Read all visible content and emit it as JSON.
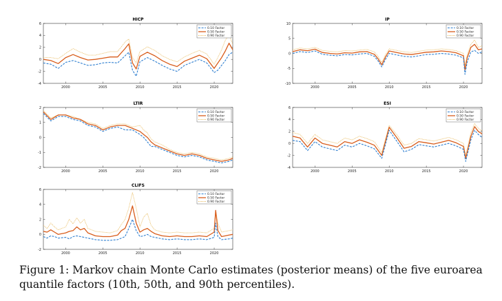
{
  "caption": "Figure 1: Markov chain Monte Carlo estimates (posterior means) of the five euroarea quantile factors (10th, 50th, and 90th percentiles).",
  "colors": {
    "q10": "#2f7fd0",
    "q50": "#d85c1a",
    "q90": "#e8b95a"
  },
  "chart_data": [
    {
      "type": "line",
      "title": "HICP",
      "xlim": [
        1997,
        2022.5
      ],
      "ylim": [
        -4,
        6
      ],
      "xticks": [
        2000,
        2005,
        2010,
        2015,
        2020
      ],
      "yticks": [
        -4,
        -2,
        0,
        2,
        4,
        6
      ],
      "legend": [
        "0.10 Factor",
        "0.50 Factor",
        "0.90 Factor"
      ],
      "legend_loc": "top-right",
      "x": [
        1997,
        1998,
        1999,
        2000,
        2001,
        2002,
        2003,
        2004,
        2005,
        2006,
        2007,
        2008,
        2008.5,
        2009,
        2009.5,
        2010,
        2011,
        2012,
        2013,
        2014,
        2015,
        2016,
        2017,
        2018,
        2019,
        2020,
        2020.5,
        2021,
        2021.5,
        2022,
        2022.5
      ],
      "series": [
        {
          "name": "0.10 Factor",
          "values": [
            -0.6,
            -0.8,
            -1.5,
            -0.5,
            -0.2,
            -0.6,
            -1.0,
            -0.9,
            -0.6,
            -0.5,
            -0.6,
            0.6,
            1.2,
            -1.8,
            -2.8,
            -0.4,
            0.3,
            -0.3,
            -1.0,
            -1.6,
            -2.0,
            -1.0,
            -0.5,
            0.0,
            -0.6,
            -2.2,
            -1.8,
            -1.0,
            -0.2,
            0.8,
            1.2
          ]
        },
        {
          "name": "0.50 Factor",
          "values": [
            0.0,
            -0.2,
            -0.7,
            0.3,
            0.8,
            0.3,
            -0.1,
            0.0,
            0.2,
            0.4,
            0.4,
            1.8,
            2.6,
            -0.6,
            -1.6,
            0.5,
            1.2,
            0.6,
            -0.2,
            -0.8,
            -1.2,
            -0.3,
            0.2,
            0.7,
            0.1,
            -1.5,
            -0.6,
            0.3,
            1.4,
            2.7,
            1.6
          ]
        },
        {
          "name": "0.90 Factor",
          "values": [
            0.3,
            0.3,
            0.1,
            1.0,
            1.8,
            1.2,
            0.7,
            0.7,
            1.0,
            1.3,
            1.3,
            2.9,
            3.4,
            0.3,
            -0.6,
            1.3,
            2.1,
            1.5,
            0.6,
            0.0,
            -0.4,
            0.4,
            1.0,
            1.5,
            0.9,
            -0.8,
            0.3,
            1.6,
            3.2,
            4.2,
            2.5
          ]
        }
      ]
    },
    {
      "type": "line",
      "title": "IP",
      "xlim": [
        1997,
        2022.5
      ],
      "ylim": [
        -10,
        10
      ],
      "xticks": [
        2000,
        2005,
        2010,
        2015,
        2020
      ],
      "yticks": [
        -10,
        -5,
        0,
        5,
        10
      ],
      "legend": [
        "0.10 Factor",
        "0.50 Factor",
        "0.90 Factor"
      ],
      "legend_loc": "top-right",
      "x": [
        1997,
        1998,
        1999,
        2000,
        2001,
        2002,
        2003,
        2004,
        2005,
        2006,
        2007,
        2008,
        2008.5,
        2009,
        2009.5,
        2010,
        2011,
        2012,
        2013,
        2014,
        2015,
        2016,
        2017,
        2018,
        2019,
        2020,
        2020.2,
        2020.5,
        2021,
        2021.5,
        2022,
        2022.5
      ],
      "series": [
        {
          "name": "0.10 Factor",
          "values": [
            0.0,
            0.6,
            0.3,
            0.8,
            -0.3,
            -0.6,
            -0.8,
            -0.4,
            -0.5,
            -0.2,
            0.0,
            -1.0,
            -2.5,
            -4.5,
            -2.0,
            0.0,
            -0.5,
            -1.0,
            -1.2,
            -0.8,
            -0.4,
            -0.3,
            0.0,
            -0.2,
            -0.6,
            -1.5,
            -7.0,
            -3.0,
            0.5,
            1.0,
            0.0,
            0.5
          ]
        },
        {
          "name": "0.50 Factor",
          "values": [
            0.6,
            1.2,
            0.9,
            1.4,
            0.3,
            0.0,
            -0.2,
            0.2,
            0.1,
            0.5,
            0.6,
            -0.3,
            -1.8,
            -3.8,
            -1.2,
            0.8,
            0.3,
            -0.2,
            -0.4,
            0.0,
            0.4,
            0.5,
            0.8,
            0.6,
            0.2,
            -0.8,
            -5.5,
            -1.5,
            2.0,
            3.0,
            1.2,
            1.5
          ]
        },
        {
          "name": "0.90 Factor",
          "values": [
            1.2,
            1.8,
            1.5,
            2.0,
            1.0,
            0.7,
            0.5,
            0.9,
            0.8,
            1.1,
            1.3,
            0.5,
            -1.0,
            -3.0,
            -0.4,
            1.5,
            1.0,
            0.5,
            0.3,
            0.7,
            1.1,
            1.2,
            1.5,
            1.3,
            0.9,
            0.0,
            -4.0,
            -0.5,
            3.0,
            4.5,
            2.0,
            2.5
          ]
        }
      ]
    },
    {
      "type": "line",
      "title": "LTIR",
      "xlim": [
        1997,
        2022.5
      ],
      "ylim": [
        -2,
        2
      ],
      "xticks": [
        2000,
        2005,
        2010,
        2015,
        2020
      ],
      "yticks": [
        -2,
        -1,
        0,
        1,
        2
      ],
      "legend": [
        "0.10 Factor",
        "0.50 Factor",
        "0.90 Factor"
      ],
      "legend_loc": "top-right",
      "x": [
        1997,
        1998,
        1999,
        2000,
        2001,
        2002,
        2003,
        2004,
        2005,
        2006,
        2007,
        2008,
        2009,
        2010,
        2010.5,
        2011,
        2011.5,
        2012,
        2013,
        2014,
        2015,
        2016,
        2017,
        2018,
        2019,
        2020,
        2021,
        2022,
        2022.5
      ],
      "series": [
        {
          "name": "0.10 Factor",
          "values": [
            1.6,
            1.1,
            1.4,
            1.4,
            1.2,
            1.1,
            0.8,
            0.7,
            0.4,
            0.6,
            0.7,
            0.5,
            0.5,
            0.2,
            0.0,
            -0.3,
            -0.6,
            -0.6,
            -0.8,
            -1.0,
            -1.2,
            -1.3,
            -1.2,
            -1.3,
            -1.5,
            -1.6,
            -1.7,
            -1.6,
            -1.5
          ]
        },
        {
          "name": "0.50 Factor",
          "values": [
            1.7,
            1.2,
            1.5,
            1.5,
            1.3,
            1.2,
            0.9,
            0.8,
            0.5,
            0.7,
            0.8,
            0.8,
            0.6,
            0.4,
            0.2,
            0.0,
            -0.3,
            -0.5,
            -0.7,
            -0.9,
            -1.1,
            -1.2,
            -1.1,
            -1.2,
            -1.4,
            -1.5,
            -1.6,
            -1.5,
            -1.4
          ]
        },
        {
          "name": "0.90 Factor",
          "values": [
            1.8,
            1.3,
            1.5,
            1.5,
            1.4,
            1.2,
            1.0,
            0.9,
            0.6,
            0.8,
            0.9,
            0.9,
            0.7,
            0.8,
            0.5,
            0.3,
            -0.1,
            -0.3,
            -0.5,
            -0.8,
            -1.0,
            -1.1,
            -1.0,
            -1.1,
            -1.3,
            -1.4,
            -1.5,
            -1.4,
            -1.3
          ]
        }
      ]
    },
    {
      "type": "line",
      "title": "ESI",
      "xlim": [
        1997,
        2022.5
      ],
      "ylim": [
        -4,
        6
      ],
      "xticks": [
        2000,
        2005,
        2010,
        2015,
        2020
      ],
      "yticks": [
        -4,
        -2,
        0,
        2,
        4,
        6
      ],
      "legend": [
        "0.10 Factor",
        "0.50 Factor",
        "0.90 Factor"
      ],
      "legend_loc": "top-right",
      "x": [
        1997,
        1998,
        1999,
        2000,
        2001,
        2002,
        2003,
        2004,
        2005,
        2006,
        2007,
        2008,
        2009,
        2010,
        2011,
        2012,
        2013,
        2014,
        2015,
        2016,
        2017,
        2018,
        2019,
        2020,
        2020.3,
        2021,
        2021.5,
        2022,
        2022.5
      ],
      "series": [
        {
          "name": "0.10 Factor",
          "values": [
            0.5,
            0.3,
            -1.2,
            0.3,
            -0.6,
            -0.9,
            -1.2,
            -0.3,
            -0.6,
            0.0,
            -0.4,
            -0.9,
            -2.5,
            2.2,
            0.4,
            -1.4,
            -1.0,
            -0.2,
            -0.4,
            -0.6,
            -0.3,
            0.0,
            -0.4,
            -1.0,
            -3.0,
            0.6,
            2.2,
            1.5,
            1.0
          ]
        },
        {
          "name": "0.50 Factor",
          "values": [
            1.2,
            0.9,
            -0.6,
            0.9,
            0.0,
            -0.3,
            -0.6,
            0.3,
            0.0,
            0.6,
            0.2,
            -0.3,
            -2.0,
            2.7,
            1.0,
            -0.8,
            -0.5,
            0.3,
            0.1,
            -0.1,
            0.2,
            0.5,
            0.1,
            -0.5,
            -2.5,
            1.2,
            2.8,
            2.0,
            1.6
          ]
        },
        {
          "name": "0.90 Factor",
          "values": [
            1.8,
            1.5,
            0.0,
            1.5,
            0.6,
            0.3,
            0.0,
            0.9,
            0.6,
            1.2,
            0.8,
            0.3,
            -1.5,
            3.0,
            1.5,
            -0.3,
            0.0,
            0.8,
            0.6,
            0.4,
            0.7,
            1.0,
            0.6,
            0.0,
            -2.0,
            1.8,
            3.3,
            2.5,
            2.1
          ]
        }
      ]
    },
    {
      "type": "line",
      "title": "CLIFS",
      "xlim": [
        1997,
        2022.5
      ],
      "ylim": [
        -2,
        6
      ],
      "xticks": [
        2000,
        2005,
        2010,
        2015,
        2020
      ],
      "yticks": [
        -2,
        0,
        2,
        4,
        6
      ],
      "legend": [
        "0.10 Factor",
        "0.50 Factor",
        "0.90 Factor"
      ],
      "legend_loc": "top-right",
      "x": [
        1997,
        1997.5,
        1998,
        1998.5,
        1999,
        2000,
        2000.5,
        2001,
        2001.5,
        2002,
        2002.5,
        2003,
        2004,
        2005,
        2006,
        2007,
        2007.5,
        2008,
        2008.5,
        2009,
        2009.5,
        2010,
        2010.5,
        2011,
        2011.5,
        2012,
        2013,
        2014,
        2015,
        2016,
        2017,
        2018,
        2019,
        2020,
        2020.2,
        2020.5,
        2021,
        2022,
        2022.5
      ],
      "series": [
        {
          "name": "0.10 Factor",
          "values": [
            -0.3,
            -0.5,
            -0.2,
            -0.3,
            -0.5,
            -0.4,
            -0.6,
            -0.3,
            -0.2,
            -0.3,
            -0.4,
            -0.5,
            -0.7,
            -0.8,
            -0.8,
            -0.7,
            -0.5,
            -0.3,
            0.8,
            2.0,
            0.5,
            -0.3,
            -0.2,
            0.0,
            -0.3,
            -0.4,
            -0.6,
            -0.7,
            -0.6,
            -0.7,
            -0.7,
            -0.6,
            -0.7,
            -0.4,
            1.5,
            -0.3,
            -0.7,
            -0.6,
            -0.5
          ]
        },
        {
          "name": "0.50 Factor",
          "values": [
            0.4,
            0.3,
            0.6,
            0.3,
            0.0,
            0.2,
            0.4,
            0.5,
            1.0,
            0.6,
            0.8,
            0.2,
            -0.2,
            -0.3,
            -0.3,
            -0.1,
            0.5,
            0.8,
            2.0,
            3.8,
            1.5,
            0.3,
            0.6,
            0.8,
            0.4,
            0.1,
            -0.2,
            -0.3,
            -0.2,
            -0.3,
            -0.3,
            -0.2,
            -0.3,
            0.3,
            3.2,
            0.5,
            -0.3,
            -0.1,
            0.0
          ]
        },
        {
          "name": "0.90 Factor",
          "values": [
            1.2,
            0.8,
            1.5,
            1.0,
            0.6,
            1.0,
            2.0,
            1.4,
            2.2,
            1.5,
            2.0,
            0.8,
            0.4,
            0.3,
            0.2,
            0.5,
            1.3,
            2.0,
            3.5,
            5.6,
            3.5,
            1.0,
            2.3,
            2.8,
            1.2,
            0.6,
            0.3,
            0.2,
            0.3,
            0.2,
            0.2,
            0.3,
            0.2,
            0.8,
            3.2,
            1.5,
            0.3,
            0.5,
            0.6
          ]
        }
      ]
    }
  ]
}
